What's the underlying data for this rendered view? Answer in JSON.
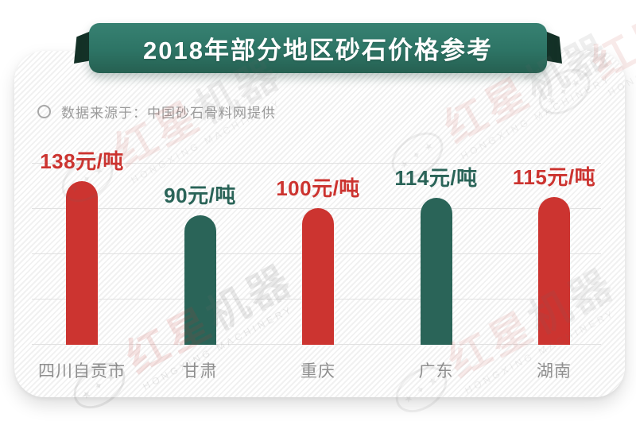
{
  "banner": {
    "title": "2018年部分地区砂石价格参考"
  },
  "source": {
    "text": "数据来源于：中国砂石骨料网提供"
  },
  "watermark": {
    "brand_cn_red": "红星",
    "brand_cn_dark": "机器",
    "brand_en": "HONGXING MACHINERY",
    "emblem_stars": "★ ✦ ★"
  },
  "chart_data": {
    "type": "bar",
    "title": "2018年部分地区砂石价格参考",
    "categories": [
      "四川自贡市",
      "甘肃",
      "重庆",
      "广东",
      "湖南"
    ],
    "values": [
      138,
      90,
      100,
      114,
      115
    ],
    "unit": "元/吨",
    "value_labels": [
      "138元/吨",
      "90元/吨",
      "100元/吨",
      "114元/吨",
      "115元/吨"
    ],
    "bar_colors": [
      "#cc3430",
      "#2a6458",
      "#cc3430",
      "#2a6458",
      "#cc3430"
    ],
    "grid": true,
    "legend_position": "none",
    "source_note": "数据来源于：中国砂石骨料网提供",
    "ylim": [
      0,
      150
    ]
  },
  "colors": {
    "red": "#cc3430",
    "green": "#2a6458",
    "ribbon_green": "#2d7465",
    "ribbon_fold": "#143127",
    "gridline": "#e1e1e1",
    "category_label": "#8f8f8f",
    "source_text": "#9b9b9b"
  }
}
